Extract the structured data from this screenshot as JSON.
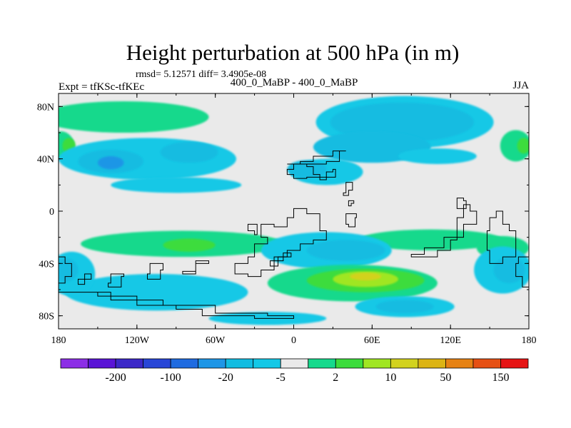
{
  "chart_data": {
    "type": "heatmap",
    "title": "Height perturbation at 500 hPa (in m)",
    "stats_line": "rmsd= 5.12571 diff= 3.4905e-08",
    "left_label": "Expt = tfKSc-tfKEc",
    "center_label": "400_0_MaBP - 400_0_MaBP",
    "right_label": "JJA",
    "projection": "cylindrical-equidistant",
    "xlim": [
      -180,
      180
    ],
    "ylim": [
      -90,
      90
    ],
    "x_ticks": [
      {
        "value": -180,
        "label": "180"
      },
      {
        "value": -120,
        "label": "120W"
      },
      {
        "value": -60,
        "label": "60W"
      },
      {
        "value": 0,
        "label": "0"
      },
      {
        "value": 60,
        "label": "60E"
      },
      {
        "value": 120,
        "label": "120E"
      },
      {
        "value": 180,
        "label": "180"
      }
    ],
    "y_ticks": [
      {
        "value": 80,
        "label": "80N"
      },
      {
        "value": 40,
        "label": "40N"
      },
      {
        "value": 0,
        "label": "0"
      },
      {
        "value": -40,
        "label": "40S"
      },
      {
        "value": -80,
        "label": "80S"
      }
    ],
    "colorbar": {
      "colors": [
        "#8c2ee6",
        "#5a14d6",
        "#3c28c8",
        "#2846d7",
        "#1f6be0",
        "#1e96e6",
        "#12bce1",
        "#14c8e6",
        "#eaeaea",
        "#16d98c",
        "#3cdc3c",
        "#a0e622",
        "#d2d21e",
        "#dcb414",
        "#e68214",
        "#e65014",
        "#e61414"
      ],
      "tick_labels": [
        {
          "after_bin": 1,
          "label": "-200"
        },
        {
          "after_bin": 3,
          "label": "-100"
        },
        {
          "after_bin": 5,
          "label": "-20"
        },
        {
          "after_bin": 7,
          "label": "-5"
        },
        {
          "after_bin": 9,
          "label": "2"
        },
        {
          "after_bin": 11,
          "label": "10"
        },
        {
          "after_bin": 13,
          "label": "50"
        },
        {
          "after_bin": 15,
          "label": "150"
        }
      ]
    },
    "regions": [
      {
        "level": 9,
        "lon": -130,
        "lat": 72,
        "rx": 65,
        "ry": 12
      },
      {
        "level": 9,
        "lon": -178,
        "lat": 50,
        "rx": 10,
        "ry": 11
      },
      {
        "level": 10,
        "lon": -172,
        "lat": 50,
        "rx": 5,
        "ry": 6
      },
      {
        "level": 9,
        "lon": 170,
        "lat": 50,
        "rx": 12,
        "ry": 12
      },
      {
        "level": 10,
        "lon": 176,
        "lat": 50,
        "rx": 5,
        "ry": 6
      },
      {
        "level": 7,
        "lon": 85,
        "lat": 68,
        "rx": 68,
        "ry": 20
      },
      {
        "level": 6,
        "lon": 83,
        "lat": 68,
        "rx": 55,
        "ry": 15
      },
      {
        "level": 6,
        "lon": 60,
        "lat": 49,
        "rx": 45,
        "ry": 12
      },
      {
        "level": 7,
        "lon": -112,
        "lat": 40,
        "rx": 68,
        "ry": 16
      },
      {
        "level": 6,
        "lon": -140,
        "lat": 38,
        "rx": 25,
        "ry": 9
      },
      {
        "level": 5,
        "lon": -140,
        "lat": 37,
        "rx": 10,
        "ry": 5
      },
      {
        "level": 6,
        "lon": -80,
        "lat": 45,
        "rx": 22,
        "ry": 8
      },
      {
        "level": 7,
        "lon": -90,
        "lat": 20,
        "rx": 50,
        "ry": 6
      },
      {
        "level": 7,
        "lon": 25,
        "lat": 30,
        "rx": 28,
        "ry": 10
      },
      {
        "level": 6,
        "lon": 10,
        "lat": 32,
        "rx": 15,
        "ry": 7
      },
      {
        "level": 7,
        "lon": 110,
        "lat": 42,
        "rx": 30,
        "ry": 6
      },
      {
        "level": 9,
        "lon": -85,
        "lat": -25,
        "rx": 78,
        "ry": 10
      },
      {
        "level": 9,
        "lon": 105,
        "lat": -22,
        "rx": 55,
        "ry": 8
      },
      {
        "level": 10,
        "lon": -80,
        "lat": -26,
        "rx": 20,
        "ry": 5
      },
      {
        "level": 9,
        "lon": 160,
        "lat": -28,
        "rx": 20,
        "ry": 9
      },
      {
        "level": 7,
        "lon": -105,
        "lat": -62,
        "rx": 70,
        "ry": 14
      },
      {
        "level": 7,
        "lon": -170,
        "lat": -48,
        "rx": 18,
        "ry": 17
      },
      {
        "level": 6,
        "lon": -175,
        "lat": -45,
        "rx": 10,
        "ry": 9
      },
      {
        "level": 7,
        "lon": 25,
        "lat": -30,
        "rx": 50,
        "ry": 14
      },
      {
        "level": 6,
        "lon": 40,
        "lat": -30,
        "rx": 30,
        "ry": 8
      },
      {
        "level": 7,
        "lon": 160,
        "lat": -45,
        "rx": 22,
        "ry": 18
      },
      {
        "level": 6,
        "lon": 165,
        "lat": -45,
        "rx": 12,
        "ry": 10
      },
      {
        "level": 9,
        "lon": 45,
        "lat": -55,
        "rx": 65,
        "ry": 14
      },
      {
        "level": 10,
        "lon": 55,
        "lat": -53,
        "rx": 45,
        "ry": 9
      },
      {
        "level": 11,
        "lon": 55,
        "lat": -52,
        "rx": 25,
        "ry": 6
      },
      {
        "level": 12,
        "lon": 55,
        "lat": -50,
        "rx": 12,
        "ry": 3
      },
      {
        "level": 7,
        "lon": 85,
        "lat": -73,
        "rx": 38,
        "ry": 8
      },
      {
        "level": 6,
        "lon": 85,
        "lat": -73,
        "rx": 22,
        "ry": 5
      },
      {
        "level": 7,
        "lon": -20,
        "lat": -82,
        "rx": 45,
        "ry": 5
      }
    ],
    "continents": [
      [
        [
          -5,
          36
        ],
        [
          5,
          38
        ],
        [
          15,
          42
        ],
        [
          30,
          46
        ],
        [
          40,
          46
        ],
        [
          35,
          38
        ],
        [
          25,
          36
        ],
        [
          10,
          36
        ],
        [
          -5,
          36
        ]
      ],
      [
        [
          -5,
          32
        ],
        [
          0,
          36
        ],
        [
          10,
          34
        ],
        [
          15,
          28
        ],
        [
          20,
          24
        ],
        [
          25,
          30
        ],
        [
          30,
          32
        ],
        [
          32,
          26
        ],
        [
          10,
          25
        ],
        [
          0,
          28
        ],
        [
          -5,
          32
        ]
      ],
      [
        [
          40,
          22
        ],
        [
          45,
          16
        ],
        [
          42,
          12
        ],
        [
          38,
          14
        ],
        [
          40,
          22
        ]
      ],
      [
        [
          -25,
          -10
        ],
        [
          -15,
          -12
        ],
        [
          -5,
          -5
        ],
        [
          0,
          2
        ],
        [
          5,
          2
        ],
        [
          10,
          -2
        ],
        [
          15,
          -2
        ],
        [
          20,
          -5
        ],
        [
          20,
          -15
        ],
        [
          25,
          -22
        ],
        [
          15,
          -25
        ],
        [
          5,
          -30
        ],
        [
          -5,
          -35
        ],
        [
          -15,
          -45
        ],
        [
          -25,
          -50
        ],
        [
          -35,
          -48
        ],
        [
          -45,
          -40
        ],
        [
          -35,
          -35
        ],
        [
          -30,
          -25
        ],
        [
          -20,
          -20
        ],
        [
          -25,
          -10
        ]
      ],
      [
        [
          -8,
          -32
        ],
        [
          -2,
          -35
        ],
        [
          -12,
          -42
        ],
        [
          -18,
          -38
        ],
        [
          -8,
          -32
        ]
      ],
      [
        [
          -35,
          -15
        ],
        [
          -30,
          -18
        ],
        [
          -28,
          -10
        ],
        [
          -35,
          -15
        ]
      ],
      [
        [
          -75,
          -38
        ],
        [
          -65,
          -40
        ],
        [
          -75,
          -48
        ],
        [
          -85,
          -46
        ],
        [
          -75,
          -38
        ]
      ],
      [
        [
          -110,
          -40
        ],
        [
          -100,
          -45
        ],
        [
          -102,
          -52
        ],
        [
          -112,
          -48
        ],
        [
          -110,
          -40
        ]
      ],
      [
        [
          -140,
          -48
        ],
        [
          -130,
          -50
        ],
        [
          -132,
          -58
        ],
        [
          -142,
          -55
        ],
        [
          -140,
          -48
        ]
      ],
      [
        [
          -160,
          -48
        ],
        [
          -155,
          -52
        ],
        [
          -160,
          -56
        ],
        [
          -165,
          -52
        ],
        [
          -160,
          -48
        ]
      ],
      [
        [
          -180,
          -62
        ],
        [
          -150,
          -65
        ],
        [
          -120,
          -72
        ],
        [
          -90,
          -75
        ],
        [
          -70,
          -80
        ],
        [
          -30,
          -82
        ],
        [
          0,
          -80
        ],
        [
          -20,
          -78
        ],
        [
          -60,
          -72
        ],
        [
          -100,
          -68
        ],
        [
          -140,
          -62
        ],
        [
          -180,
          -62
        ]
      ],
      [
        [
          -180,
          -35
        ],
        [
          -175,
          -40
        ],
        [
          -170,
          -50
        ],
        [
          -175,
          -55
        ],
        [
          -180,
          -52
        ],
        [
          -180,
          -35
        ]
      ],
      [
        [
          90,
          -35
        ],
        [
          110,
          -30
        ],
        [
          120,
          -22
        ],
        [
          125,
          -5
        ],
        [
          130,
          5
        ],
        [
          135,
          0
        ],
        [
          140,
          -10
        ],
        [
          130,
          -20
        ],
        [
          115,
          -28
        ],
        [
          100,
          -33
        ],
        [
          90,
          -35
        ]
      ],
      [
        [
          155,
          0
        ],
        [
          160,
          -10
        ],
        [
          165,
          -15
        ],
        [
          170,
          -22
        ],
        [
          170,
          -35
        ],
        [
          160,
          -40
        ],
        [
          150,
          -30
        ],
        [
          148,
          -15
        ],
        [
          150,
          -5
        ],
        [
          155,
          0
        ]
      ],
      [
        [
          180,
          -35
        ],
        [
          172,
          -40
        ],
        [
          170,
          -50
        ],
        [
          175,
          -58
        ],
        [
          180,
          -60
        ],
        [
          180,
          -35
        ]
      ],
      [
        [
          125,
          10
        ],
        [
          130,
          8
        ],
        [
          132,
          2
        ],
        [
          128,
          2
        ],
        [
          125,
          10
        ]
      ],
      [
        [
          40,
          -2
        ],
        [
          48,
          -5
        ],
        [
          47,
          -12
        ],
        [
          42,
          -10
        ],
        [
          40,
          -2
        ]
      ],
      [
        [
          42,
          8
        ],
        [
          46,
          6
        ],
        [
          44,
          4
        ],
        [
          42,
          8
        ]
      ]
    ]
  }
}
